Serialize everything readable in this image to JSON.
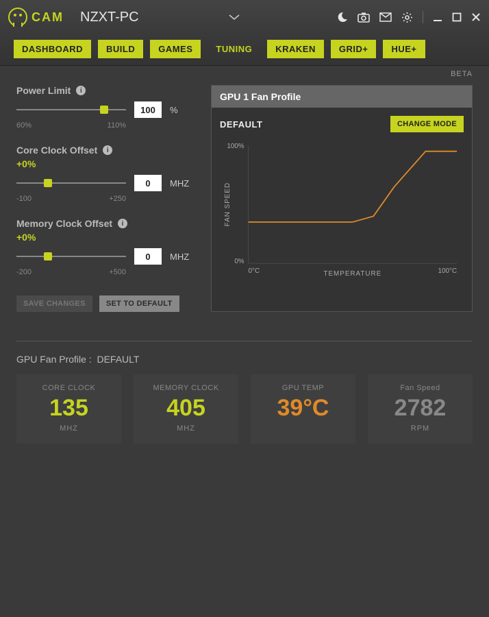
{
  "header": {
    "brand": "CAM",
    "pcname": "NZXT-PC"
  },
  "tabs": [
    "DASHBOARD",
    "BUILD",
    "GAMES",
    "TUNING",
    "KRAKEN",
    "GRID+",
    "HUE+"
  ],
  "active_tab": "TUNING",
  "beta": "BETA",
  "sliders": {
    "power": {
      "label": "Power Limit",
      "value": "100",
      "unit": "%",
      "min": "60%",
      "max": "110%",
      "thumb_pct": 80
    },
    "core": {
      "label": "Core Clock Offset",
      "offset": "+0%",
      "value": "0",
      "unit": "MHZ",
      "min": "-100",
      "max": "+250",
      "thumb_pct": 29
    },
    "memory": {
      "label": "Memory Clock Offset",
      "offset": "+0%",
      "value": "0",
      "unit": "MHZ",
      "min": "-200",
      "max": "+500",
      "thumb_pct": 29
    }
  },
  "buttons": {
    "save": "SAVE CHANGES",
    "reset": "SET TO DEFAULT",
    "change_mode": "CHANGE MODE"
  },
  "panel": {
    "title": "GPU 1 Fan Profile",
    "mode": "DEFAULT"
  },
  "chart": {
    "y_top": "100%",
    "y_bottom": "0%",
    "x_left": "0°C",
    "x_right": "100°C",
    "x_axis": "TEMPERATURE",
    "y_axis": "FAN SPEED",
    "line_color": "#e08a2a",
    "grid_color": "#4a4a4a",
    "points": [
      [
        0,
        35
      ],
      [
        50,
        35
      ],
      [
        60,
        40
      ],
      [
        70,
        65
      ],
      [
        85,
        95
      ],
      [
        100,
        95
      ]
    ]
  },
  "profile_row": {
    "label": "GPU Fan Profile :",
    "value": "DEFAULT"
  },
  "stats": [
    {
      "title": "CORE CLOCK",
      "value": "135",
      "unit": "MHZ",
      "color": "#c6d420"
    },
    {
      "title": "MEMORY CLOCK",
      "value": "405",
      "unit": "MHZ",
      "color": "#c6d420"
    },
    {
      "title": "GPU TEMP",
      "value": "39°C",
      "unit": "",
      "color": "#e08a2a"
    },
    {
      "title": "Fan Speed",
      "value": "2782",
      "unit": "RPM",
      "color": "#888888"
    }
  ]
}
